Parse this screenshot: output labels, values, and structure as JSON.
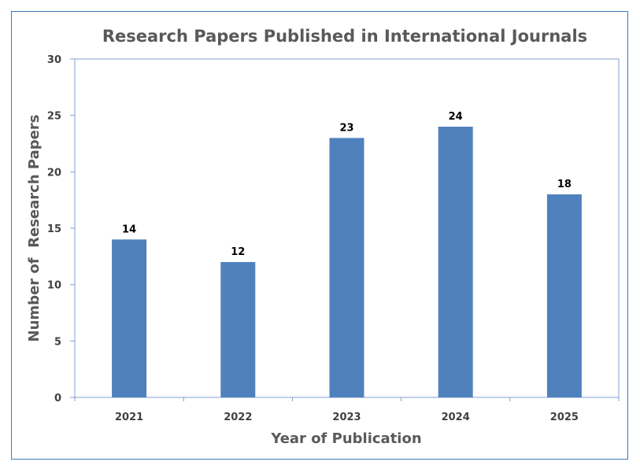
{
  "chart_data": {
    "type": "bar",
    "title": "Research Papers Published in International Journals",
    "xlabel": "Year of Publication",
    "ylabel": "Number of  Research Papers",
    "categories": [
      "2021",
      "2022",
      "2023",
      "2024",
      "2025"
    ],
    "values": [
      14,
      12,
      23,
      24,
      18
    ],
    "ylim": [
      0,
      30
    ],
    "yticks": [
      0,
      5,
      10,
      15,
      20,
      25,
      30
    ],
    "grid": false,
    "legend": "none",
    "bar_color": "#4f81bd"
  }
}
